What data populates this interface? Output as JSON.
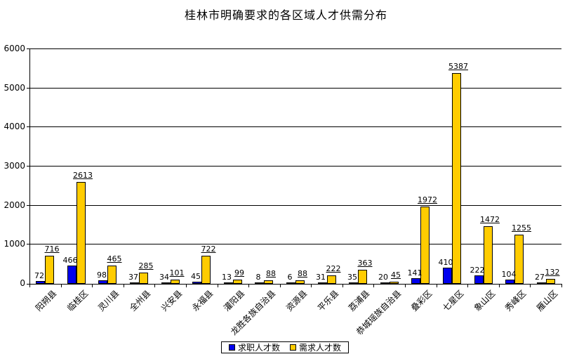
{
  "title": "桂林市明确要求的各区域人才供需分布",
  "chart_data": {
    "type": "bar",
    "title": "桂林市明确要求的各区域人才供需分布",
    "categories": [
      "阳朔县",
      "临桂区",
      "灵川县",
      "全州县",
      "兴安县",
      "永福县",
      "灌阳县",
      "龙胜各族自治县",
      "资源县",
      "平乐县",
      "荔浦县",
      "恭城瑶族自治县",
      "叠彩区",
      "七星区",
      "象山区",
      "秀峰区",
      "雁山区"
    ],
    "series": [
      {
        "name": "求职人才数",
        "color": "#0000EE",
        "values": [
          72,
          466,
          98,
          37,
          34,
          45,
          13,
          8,
          6,
          31,
          35,
          20,
          141,
          410,
          222,
          104,
          27
        ]
      },
      {
        "name": "需求人才数",
        "color": "#FFCC00",
        "values": [
          716,
          2613,
          465,
          285,
          101,
          722,
          99,
          88,
          88,
          222,
          363,
          45,
          1972,
          5387,
          1472,
          1255,
          132
        ]
      }
    ],
    "xlabel": "",
    "ylabel": "",
    "ylim": [
      0,
      6000
    ],
    "y_ticks": [
      0,
      1000,
      2000,
      3000,
      4000,
      5000,
      6000
    ],
    "grid": true,
    "legend_position": "bottom",
    "data_labels": true,
    "demand_labels_underlined": true,
    "x_labels_rotated": true
  },
  "colors": {
    "jobseeker_series": "#0000EE",
    "demand_series": "#FFCC00",
    "axis": "#000000",
    "background": "#FFFFFF"
  }
}
